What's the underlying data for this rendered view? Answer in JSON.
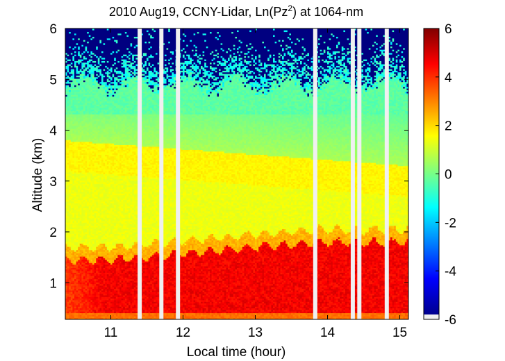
{
  "chart_data": {
    "type": "heatmap",
    "title": {
      "prefix": "2010 Aug19, CCNY-Lidar, Ln(Pz",
      "superscript": "2",
      "suffix": ") at 1064-nm"
    },
    "xlabel": "Local time (hour)",
    "ylabel": "Altitude (km)",
    "xlim": [
      10.37,
      15.12
    ],
    "ylim": [
      0.28,
      6.0
    ],
    "x_ticks": [
      11,
      12,
      13,
      14,
      15
    ],
    "y_ticks": [
      1,
      2,
      3,
      4,
      5,
      6
    ],
    "colorbar": {
      "range": [
        -6,
        6
      ],
      "ticks": [
        6,
        4,
        2,
        0,
        -2,
        -4,
        -6
      ],
      "colormap": "jet"
    },
    "layers": [
      {
        "name": "near-surface",
        "altitude_km": [
          0.28,
          0.45
        ],
        "value": 3.2
      },
      {
        "name": "boundary-layer core",
        "altitude_km": [
          0.5,
          1.4
        ],
        "value": 4.6
      },
      {
        "name": "boundary-layer top",
        "altitude_km_start": 1.45,
        "altitude_km_end": 1.8
      },
      {
        "name": "residual layer",
        "altitude_km": [
          1.9,
          3.6
        ],
        "value": 1.3
      },
      {
        "name": "elevated aerosol layer",
        "altitude_km_start": [
          3.2,
          3.8
        ],
        "altitude_km_end": [
          2.7,
          3.3
        ],
        "value": 1.6
      },
      {
        "name": "free troposphere",
        "altitude_km": [
          3.8,
          4.9
        ],
        "value": -0.4
      },
      {
        "name": "noise region",
        "altitude_km": [
          4.9,
          6.0
        ],
        "value": -6
      }
    ],
    "data_gaps_hour": [
      11.4,
      11.7,
      11.93,
      13.83,
      14.35,
      14.44,
      14.82
    ]
  }
}
